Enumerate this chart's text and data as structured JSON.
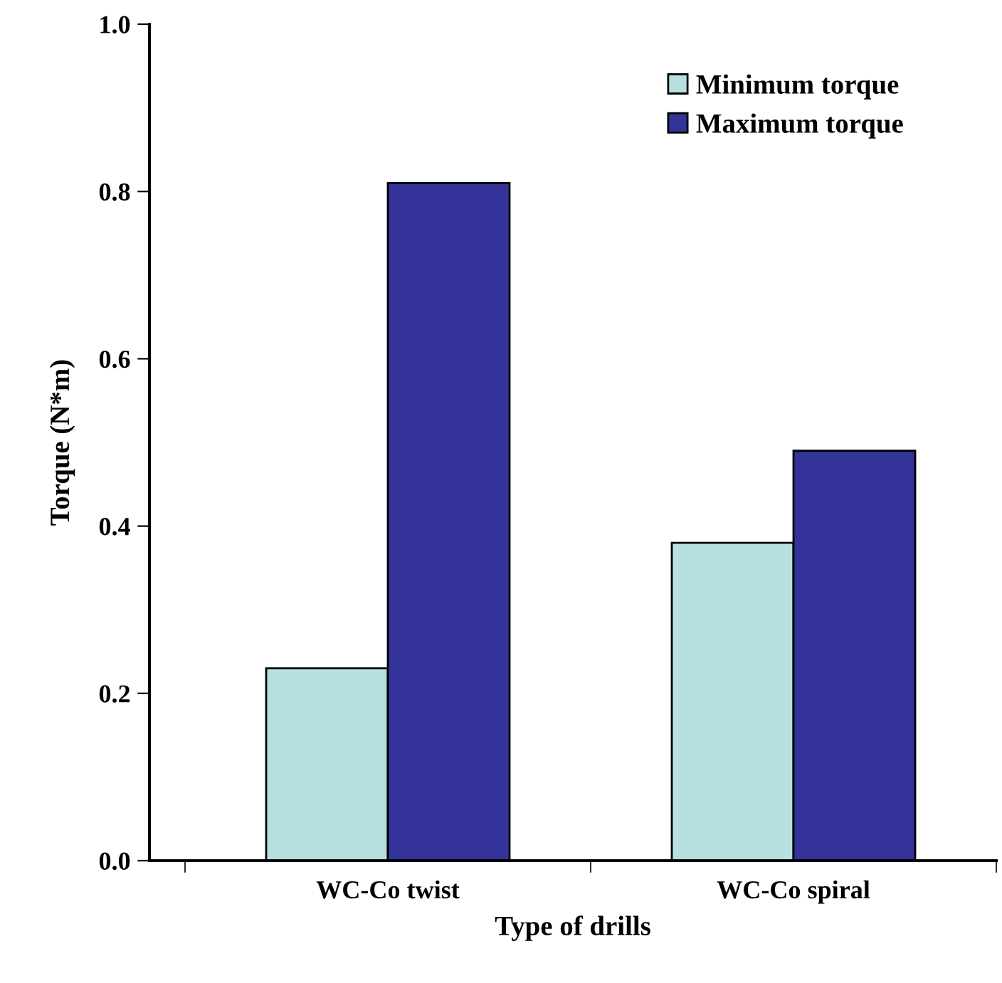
{
  "chart_data": {
    "type": "bar",
    "xlabel": "Type of drills",
    "ylabel": "Torque (N*m)",
    "categories": [
      "WC-Co twist",
      "WC-Co spiral"
    ],
    "series": [
      {
        "name": "Minimum torque",
        "color": "#b7e0e3",
        "values": [
          0.23,
          0.38
        ]
      },
      {
        "name": "Maximum torque",
        "color": "#333399",
        "values": [
          0.81,
          0.49
        ]
      }
    ],
    "ylim": [
      0,
      1.0
    ],
    "yticks": [
      "0.0",
      0.2,
      0.4,
      0.6,
      0.8,
      "1.0"
    ],
    "grid": false,
    "legend": "top right"
  }
}
